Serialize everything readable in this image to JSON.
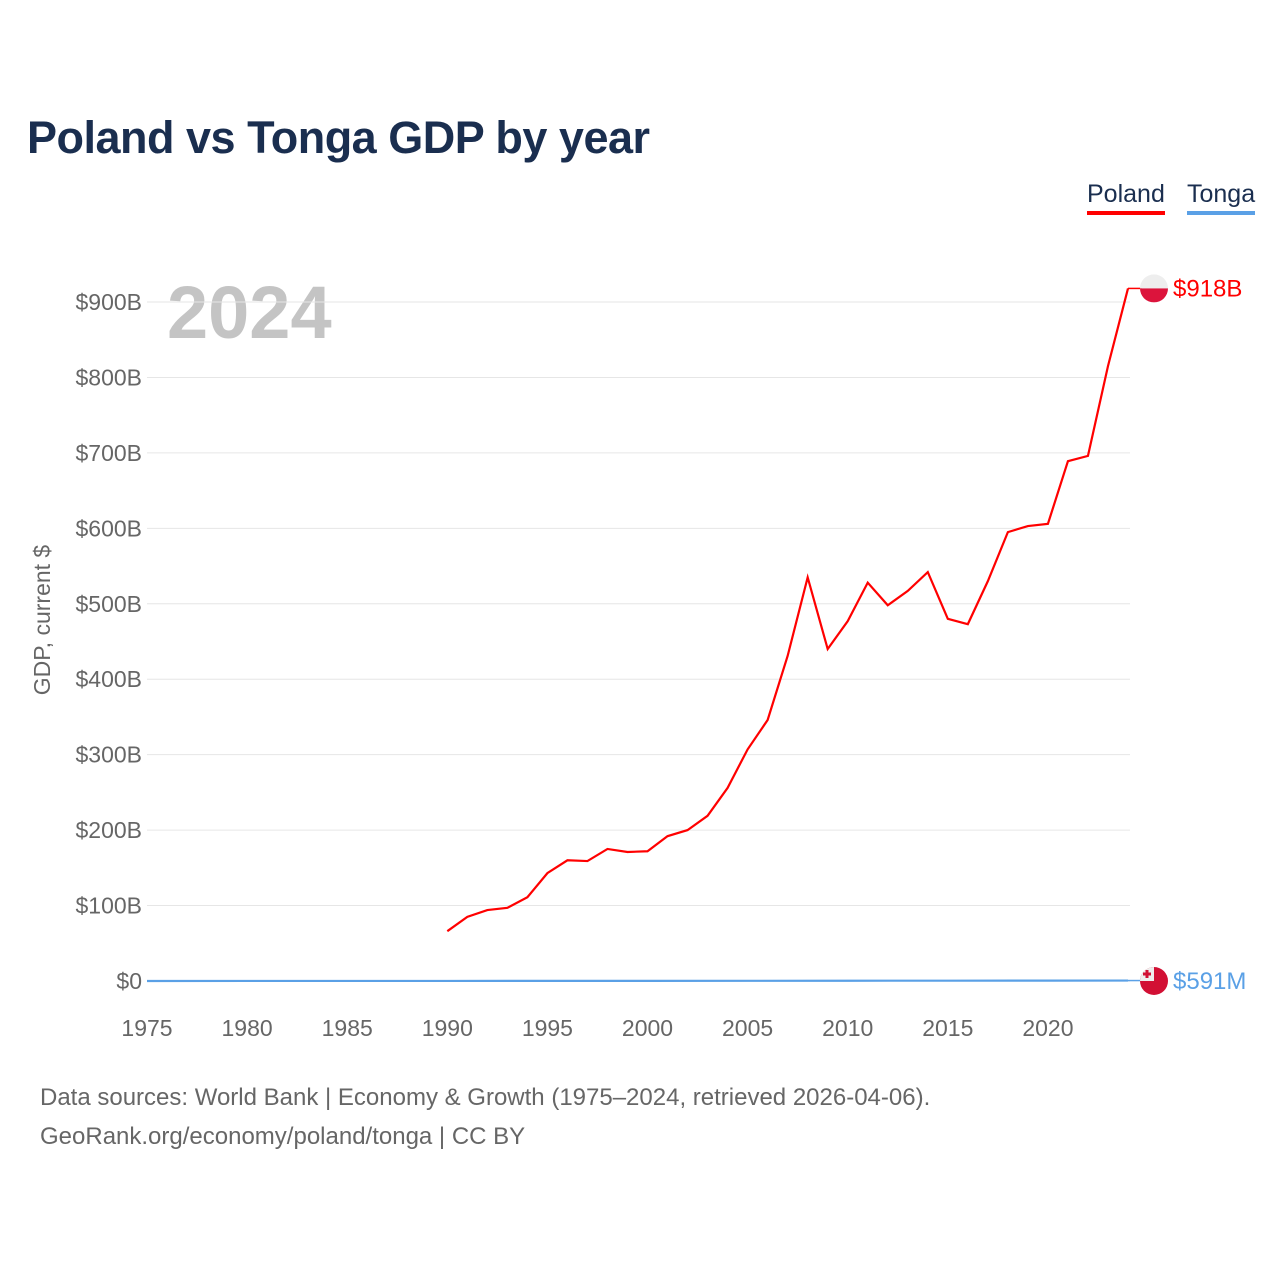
{
  "title": "Poland vs Tonga GDP by year",
  "legend": [
    {
      "label": "Poland",
      "color": "#ff0000"
    },
    {
      "label": "Tonga",
      "color": "#5aa0e6"
    }
  ],
  "year_watermark": "2024",
  "sources": {
    "line1": "Data sources: World Bank | Economy & Growth (1975–2024, retrieved 2026-04-06).",
    "line2": "GeoRank.org/economy/poland/tonga | CC BY"
  },
  "chart_data": {
    "type": "line",
    "title": "Poland vs Tonga GDP by year",
    "xlabel": "",
    "ylabel": "GDP, current $",
    "xlim": [
      1975,
      2024
    ],
    "ylim": [
      0,
      900
    ],
    "y_unit": "billion USD",
    "x_ticks": [
      1975,
      1980,
      1985,
      1990,
      1995,
      2000,
      2005,
      2010,
      2015,
      2020
    ],
    "x_tick_labels": [
      "1975",
      "1980",
      "1985",
      "1990",
      "1995",
      "2000",
      "2005",
      "2010",
      "2015",
      "2020"
    ],
    "y_ticks": [
      0,
      100,
      200,
      300,
      400,
      500,
      600,
      700,
      800,
      900
    ],
    "y_tick_labels": [
      "$0",
      "$100B",
      "$200B",
      "$300B",
      "$400B",
      "$500B",
      "$600B",
      "$700B",
      "$800B",
      "$900B"
    ],
    "grid": true,
    "legend_position": "top-right",
    "series": [
      {
        "name": "Poland",
        "color": "#ff0000",
        "end_label": "$918B",
        "x": [
          1990,
          1991,
          1992,
          1993,
          1994,
          1995,
          1996,
          1997,
          1998,
          1999,
          2000,
          2001,
          2002,
          2003,
          2004,
          2005,
          2006,
          2007,
          2008,
          2009,
          2010,
          2011,
          2012,
          2013,
          2014,
          2015,
          2016,
          2017,
          2018,
          2019,
          2020,
          2021,
          2022,
          2023,
          2024
        ],
        "values": [
          66,
          85,
          94,
          97,
          111,
          143,
          160,
          159,
          175,
          171,
          172,
          192,
          200,
          219,
          256,
          307,
          346,
          431,
          535,
          440,
          477,
          528,
          498,
          517,
          542,
          480,
          473,
          530,
          595,
          603,
          606,
          689,
          696,
          815,
          918
        ]
      },
      {
        "name": "Tonga",
        "color": "#5aa0e6",
        "end_label": "$591M",
        "x": [
          1975,
          1980,
          1985,
          1990,
          1995,
          2000,
          2005,
          2010,
          2015,
          2020,
          2024
        ],
        "values": [
          0.03,
          0.07,
          0.06,
          0.11,
          0.2,
          0.2,
          0.26,
          0.37,
          0.44,
          0.49,
          0.591
        ]
      }
    ]
  }
}
